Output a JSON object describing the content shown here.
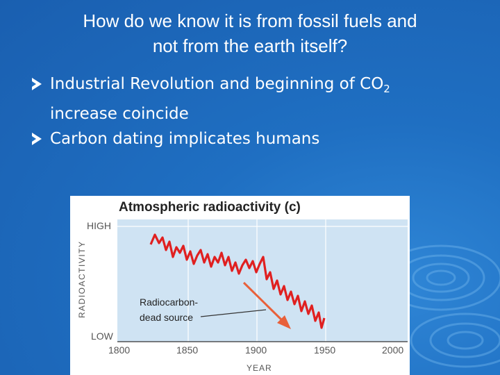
{
  "slide": {
    "title_line1": "How do we know it is from fossil fuels and",
    "title_line2": "not from the earth itself?",
    "bullets": [
      {
        "text": "Industrial Revolution and beginning of CO",
        "subscript": "2",
        "continuation": "increase coincide"
      },
      {
        "text": "Carbon dating implicates humans"
      }
    ]
  },
  "figure": {
    "title": "Atmospheric radioactivity (c)",
    "y_axis_label": "RADIOACTIVITY",
    "y_high_label": "HIGH",
    "y_low_label": "LOW",
    "x_axis_label": "YEAR",
    "x_ticks": [
      "1800",
      "1850",
      "1900",
      "1950",
      "2000"
    ],
    "annotation_line1": "Radiocarbon-",
    "annotation_line2": "dead source",
    "colors": {
      "line": "#e02020",
      "plot_bg": "#cfe3f3",
      "arrow": "#e8603a"
    }
  }
}
